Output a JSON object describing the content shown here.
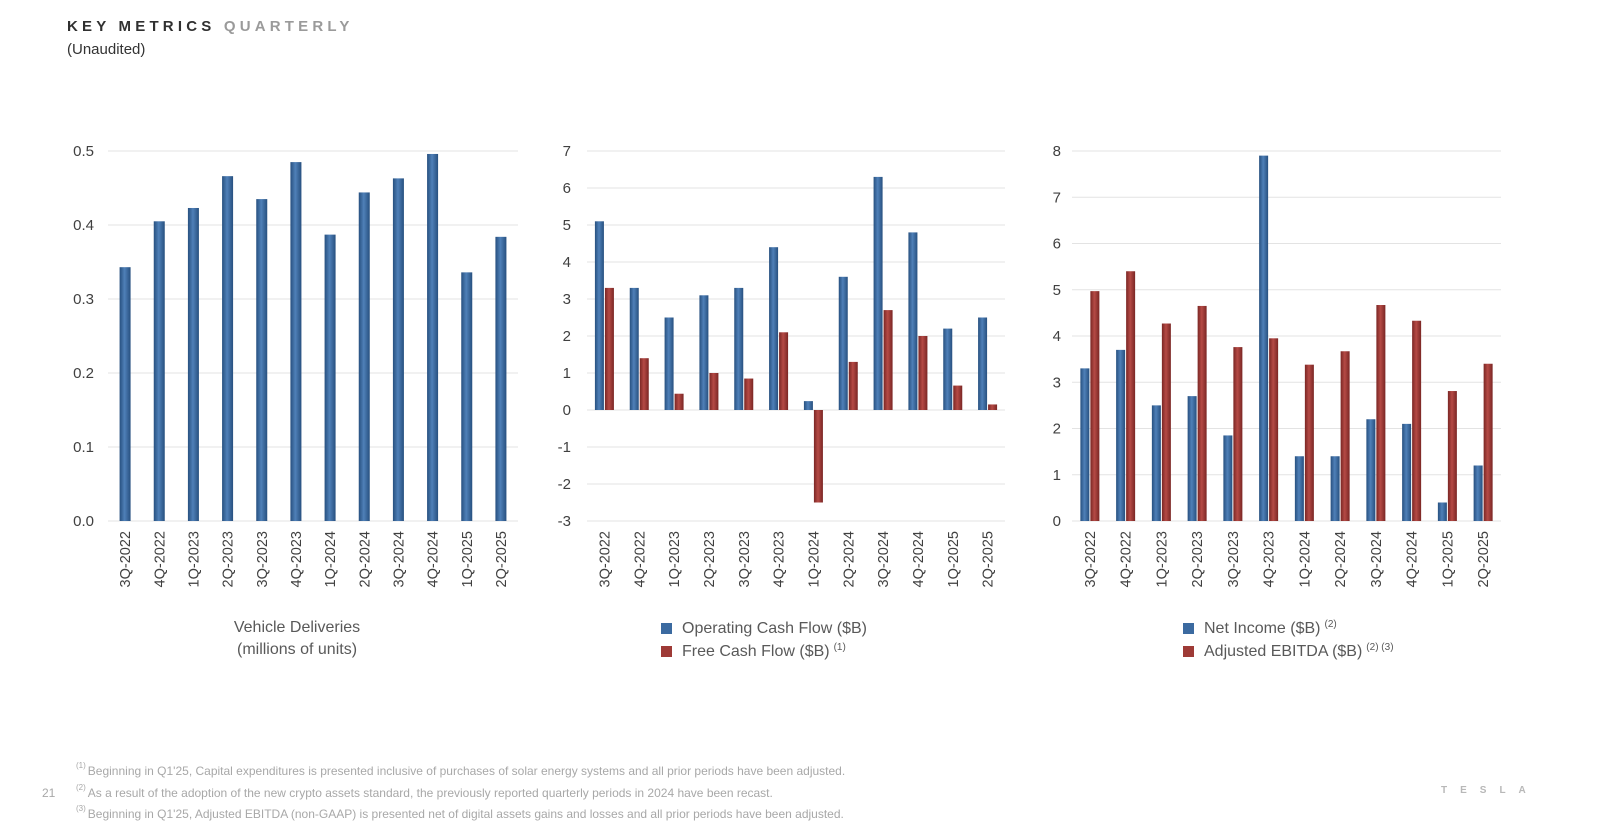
{
  "header": {
    "title_main": "KEY METRICS",
    "title_accent": "QUARTERLY",
    "subtitle": "(Unaudited)"
  },
  "colors": {
    "blue": "#3b6aa0",
    "blue_light": "#4f80b8",
    "blue_dark": "#27507f",
    "red": "#9e3a36",
    "red_light": "#b54a45",
    "red_dark": "#7a2624",
    "grid": "#e3e3e3"
  },
  "chart_data": [
    {
      "type": "bar",
      "categories": [
        "3Q-2022",
        "4Q-2022",
        "1Q-2023",
        "2Q-2023",
        "3Q-2023",
        "4Q-2023",
        "1Q-2024",
        "2Q-2024",
        "3Q-2024",
        "4Q-2024",
        "1Q-2025",
        "2Q-2025"
      ],
      "series": [
        {
          "color": "blue",
          "values": [
            0.343,
            0.405,
            0.423,
            0.466,
            0.435,
            0.485,
            0.387,
            0.444,
            0.463,
            0.496,
            0.336,
            0.384
          ]
        }
      ],
      "ylim": [
        0,
        0.5
      ],
      "yticks": [
        "0.0",
        "0.1",
        "0.2",
        "0.3",
        "0.4",
        "0.5"
      ],
      "xlabel": "Vehicle Deliveries",
      "xlabel2": "(millions of units)",
      "grid": true
    },
    {
      "type": "bar",
      "categories": [
        "3Q-2022",
        "4Q-2022",
        "1Q-2023",
        "2Q-2023",
        "3Q-2023",
        "4Q-2023",
        "1Q-2024",
        "2Q-2024",
        "3Q-2024",
        "4Q-2024",
        "1Q-2025",
        "2Q-2025"
      ],
      "series": [
        {
          "name": "Operating Cash Flow ($B)",
          "sup": "",
          "color": "blue",
          "values": [
            5.1,
            3.3,
            2.5,
            3.1,
            3.3,
            4.4,
            0.24,
            3.6,
            6.3,
            4.8,
            2.2,
            2.5
          ]
        },
        {
          "name": "Free Cash Flow ($B)",
          "sup": "(1)",
          "color": "red",
          "values": [
            3.3,
            1.4,
            0.44,
            1.0,
            0.85,
            2.1,
            -2.5,
            1.3,
            2.7,
            2.0,
            0.66,
            0.15
          ]
        }
      ],
      "ylim": [
        -3,
        7
      ],
      "yticks": [
        "-3",
        "-2",
        "-1",
        "0",
        "1",
        "2",
        "3",
        "4",
        "5",
        "6",
        "7"
      ],
      "legend": "bottom",
      "grid": true
    },
    {
      "type": "bar",
      "categories": [
        "3Q-2022",
        "4Q-2022",
        "1Q-2023",
        "2Q-2023",
        "3Q-2023",
        "4Q-2023",
        "1Q-2024",
        "2Q-2024",
        "3Q-2024",
        "4Q-2024",
        "1Q-2025",
        "2Q-2025"
      ],
      "series": [
        {
          "name": "Net Income ($B)",
          "sup": "(2)",
          "color": "blue",
          "values": [
            3.3,
            3.7,
            2.5,
            2.7,
            1.85,
            7.9,
            1.4,
            1.4,
            2.2,
            2.1,
            0.4,
            1.2
          ]
        },
        {
          "name": "Adjusted EBITDA ($B)",
          "sup": "(2) (3)",
          "color": "red",
          "values": [
            4.97,
            5.4,
            4.27,
            4.65,
            3.76,
            3.95,
            3.38,
            3.67,
            4.67,
            4.33,
            2.81,
            3.4
          ]
        }
      ],
      "ylim": [
        0,
        8
      ],
      "yticks": [
        "0",
        "1",
        "2",
        "3",
        "4",
        "5",
        "6",
        "7",
        "8"
      ],
      "legend": "bottom",
      "grid": true
    }
  ],
  "footnotes": [
    {
      "sup": "(1)",
      "text": "Beginning in Q1'25, Capital expenditures is presented inclusive of purchases of solar energy systems and all prior periods have been adjusted."
    },
    {
      "sup": "(2)",
      "text": "As a result of the adoption of the new crypto assets standard, the previously reported quarterly periods in 2024 have been recast."
    },
    {
      "sup": "(3)",
      "text": "Beginning in Q1'25, Adjusted EBITDA (non-GAAP) is presented net of digital assets gains and losses and all prior periods have been adjusted."
    }
  ],
  "page_number": "21",
  "brand": "TESLA"
}
